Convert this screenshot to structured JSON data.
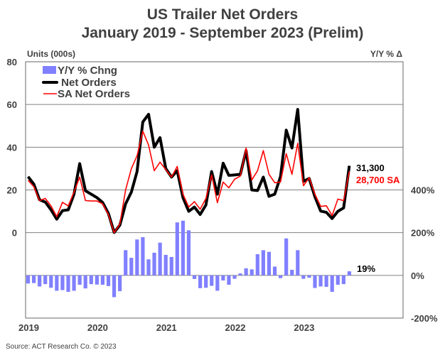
{
  "chart_data": {
    "type": "bar+line",
    "title": "US Trailer Net Orders",
    "subtitle": "January 2019 - September 2023 (Prelim)",
    "ylabel_left": "Units (000s)",
    "ylabel_right": "Y/Y % Δ",
    "ylim_left": [
      -40,
      80
    ],
    "ylim_right": [
      -200,
      1000
    ],
    "yticks_left": [
      "80",
      "60",
      "40",
      "20",
      "0"
    ],
    "yticks_left_values": [
      80,
      60,
      40,
      20,
      0
    ],
    "yticks_right": [
      "400%",
      "200%",
      "0%",
      "-200%"
    ],
    "yticks_right_values": [
      400,
      200,
      0,
      -200
    ],
    "xtick_labels": [
      "2019",
      "2020",
      "2021",
      "2022",
      "2023"
    ],
    "grid": "horizontal",
    "legend_placement": "top-left",
    "legend": [
      {
        "label": "Y/Y % Chng",
        "kind": "bar",
        "color": "#8080ff"
      },
      {
        "label": " Net Orders",
        "kind": "thick-line",
        "color": "#000000"
      },
      {
        "label": "SA Net Orders",
        "kind": "line",
        "color": "#ff0000"
      }
    ],
    "x_start": "2019-01",
    "x_end": "2023-09",
    "series": [
      {
        "name": "Y/Y % Chng",
        "axis": "right",
        "type": "bar",
        "color": "#8080ff",
        "values": [
          -38,
          -36,
          -52,
          -41,
          -58,
          -72,
          -69,
          -77,
          -72,
          -44,
          -61,
          -41,
          -43,
          -44,
          -50,
          -102,
          -74,
          118,
          82,
          168,
          179,
          75,
          106,
          153,
          96,
          86,
          248,
          256,
          211,
          -17,
          -60,
          -58,
          -49,
          -72,
          -24,
          -44,
          -16,
          9,
          33,
          28,
          99,
          118,
          110,
          41,
          -13,
          173,
          26,
          118,
          -16,
          -11,
          -59,
          -52,
          -54,
          -77,
          -44,
          -41,
          19
        ]
      },
      {
        "name": "Net Orders",
        "axis": "left",
        "type": "line",
        "color": "#000000",
        "values": [
          26.2,
          22.7,
          15.4,
          14.3,
          10.7,
          6.3,
          10.3,
          10.7,
          18,
          32.3,
          19.6,
          18,
          16.4,
          14.1,
          9,
          0.1,
          3.5,
          13.5,
          19,
          28.6,
          51.8,
          55.4,
          40,
          44.5,
          30,
          26,
          29,
          16.4,
          10,
          12,
          8.5,
          13,
          28.6,
          18,
          32.5,
          26.8,
          27,
          27.3,
          38.4,
          20,
          19.7,
          26,
          17,
          18,
          26.2,
          48,
          39.6,
          57.7,
          24,
          25.4,
          16.8,
          10.1,
          9.5,
          6.6,
          10,
          11.6,
          31.3
        ]
      },
      {
        "name": "SA Net Orders",
        "axis": "left",
        "type": "line",
        "color": "#ff0000",
        "values": [
          24.5,
          21.5,
          15,
          16,
          12.5,
          7.5,
          14.2,
          12.5,
          19,
          26,
          15,
          14.8,
          14.8,
          13.5,
          8.5,
          0,
          4,
          20,
          30,
          36,
          47.5,
          41,
          29,
          33,
          29.5,
          26,
          31,
          18,
          12,
          14.5,
          11,
          16,
          27,
          14,
          23.7,
          21,
          25,
          26.5,
          39.6,
          24.7,
          29,
          38.4,
          27.3,
          23.4,
          23.7,
          37,
          27.3,
          41.8,
          22,
          25.7,
          18,
          12.3,
          12.6,
          8,
          15.7,
          15,
          28.7
        ]
      }
    ],
    "annotations": {
      "net_orders_latest": "31,300",
      "sa_latest": "28,700 SA",
      "yy_latest": "19%"
    },
    "source": "Source: ACT Research Co. © 2023"
  }
}
